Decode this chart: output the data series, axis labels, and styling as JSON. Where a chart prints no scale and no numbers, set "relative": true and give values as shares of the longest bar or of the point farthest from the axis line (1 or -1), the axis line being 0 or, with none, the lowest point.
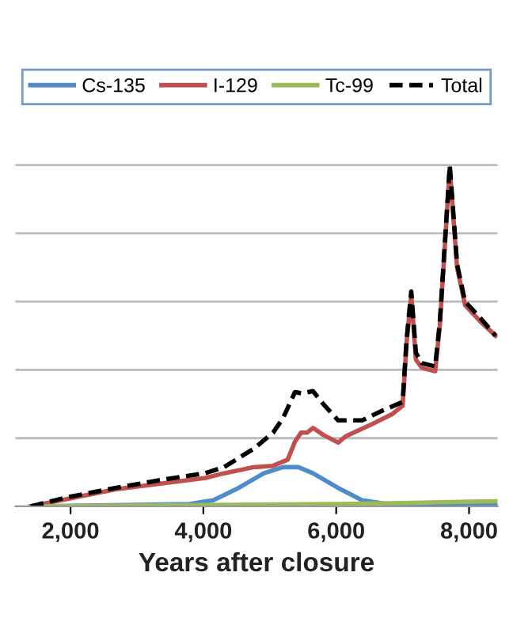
{
  "chart_data": {
    "type": "line",
    "relative": true,
    "xlabel": "Years after closure",
    "xlim": [
      1170,
      8430
    ],
    "xticks": [
      {
        "value": 2000,
        "label": "2,000"
      },
      {
        "value": 4000,
        "label": "4,000"
      },
      {
        "value": 6000,
        "label": "6,000"
      },
      {
        "value": 8000,
        "label": "8,000"
      }
    ],
    "grid": "y",
    "legend": "top",
    "tick_labels": "x",
    "series": [
      {
        "name": "Cs-135",
        "color": "#4f8cc9",
        "x": [
          1400,
          3790,
          4150,
          4530,
          4910,
          5200,
          5430,
          5650,
          6030,
          6390,
          6770,
          8400
        ],
        "values": [
          0,
          0.007,
          0.018,
          0.054,
          0.097,
          0.115,
          0.115,
          0.097,
          0.054,
          0.018,
          0.007,
          0.004
        ]
      },
      {
        "name": "I-129",
        "color": "#c0504d",
        "x": [
          1400,
          2670,
          4020,
          4310,
          4760,
          5050,
          5270,
          5380,
          5470,
          5560,
          5650,
          5810,
          6030,
          6140,
          6540,
          6840,
          7000,
          7060,
          7130,
          7200,
          7290,
          7490,
          7560,
          7710,
          7820,
          7940,
          8180,
          8400
        ],
        "values": [
          0,
          0.05,
          0.083,
          0.097,
          0.115,
          0.119,
          0.137,
          0.19,
          0.216,
          0.216,
          0.23,
          0.209,
          0.187,
          0.205,
          0.241,
          0.27,
          0.295,
          0.48,
          0.62,
          0.43,
          0.406,
          0.396,
          0.53,
          0.99,
          0.7,
          0.59,
          0.54,
          0.5
        ]
      },
      {
        "name": "Tc-99",
        "color": "#9bbb59",
        "x": [
          1400,
          4000,
          6000,
          7000,
          8000,
          8400
        ],
        "values": [
          0,
          0.004,
          0.007,
          0.01,
          0.014,
          0.015
        ]
      },
      {
        "name": "Total",
        "color": "#000000",
        "line_style": "dashed",
        "x": [
          1400,
          1910,
          2670,
          3410,
          4020,
          4310,
          4760,
          5050,
          5200,
          5380,
          5490,
          5650,
          5810,
          6030,
          6390,
          6700,
          7000,
          7060,
          7130,
          7200,
          7290,
          7490,
          7560,
          7710,
          7820,
          7940,
          8180,
          8400
        ],
        "values": [
          0,
          0.025,
          0.054,
          0.079,
          0.097,
          0.115,
          0.169,
          0.216,
          0.259,
          0.335,
          0.331,
          0.338,
          0.299,
          0.252,
          0.252,
          0.281,
          0.306,
          0.49,
          0.63,
          0.45,
          0.42,
          0.41,
          0.54,
          1.0,
          0.71,
          0.6,
          0.55,
          0.5
        ]
      }
    ]
  }
}
